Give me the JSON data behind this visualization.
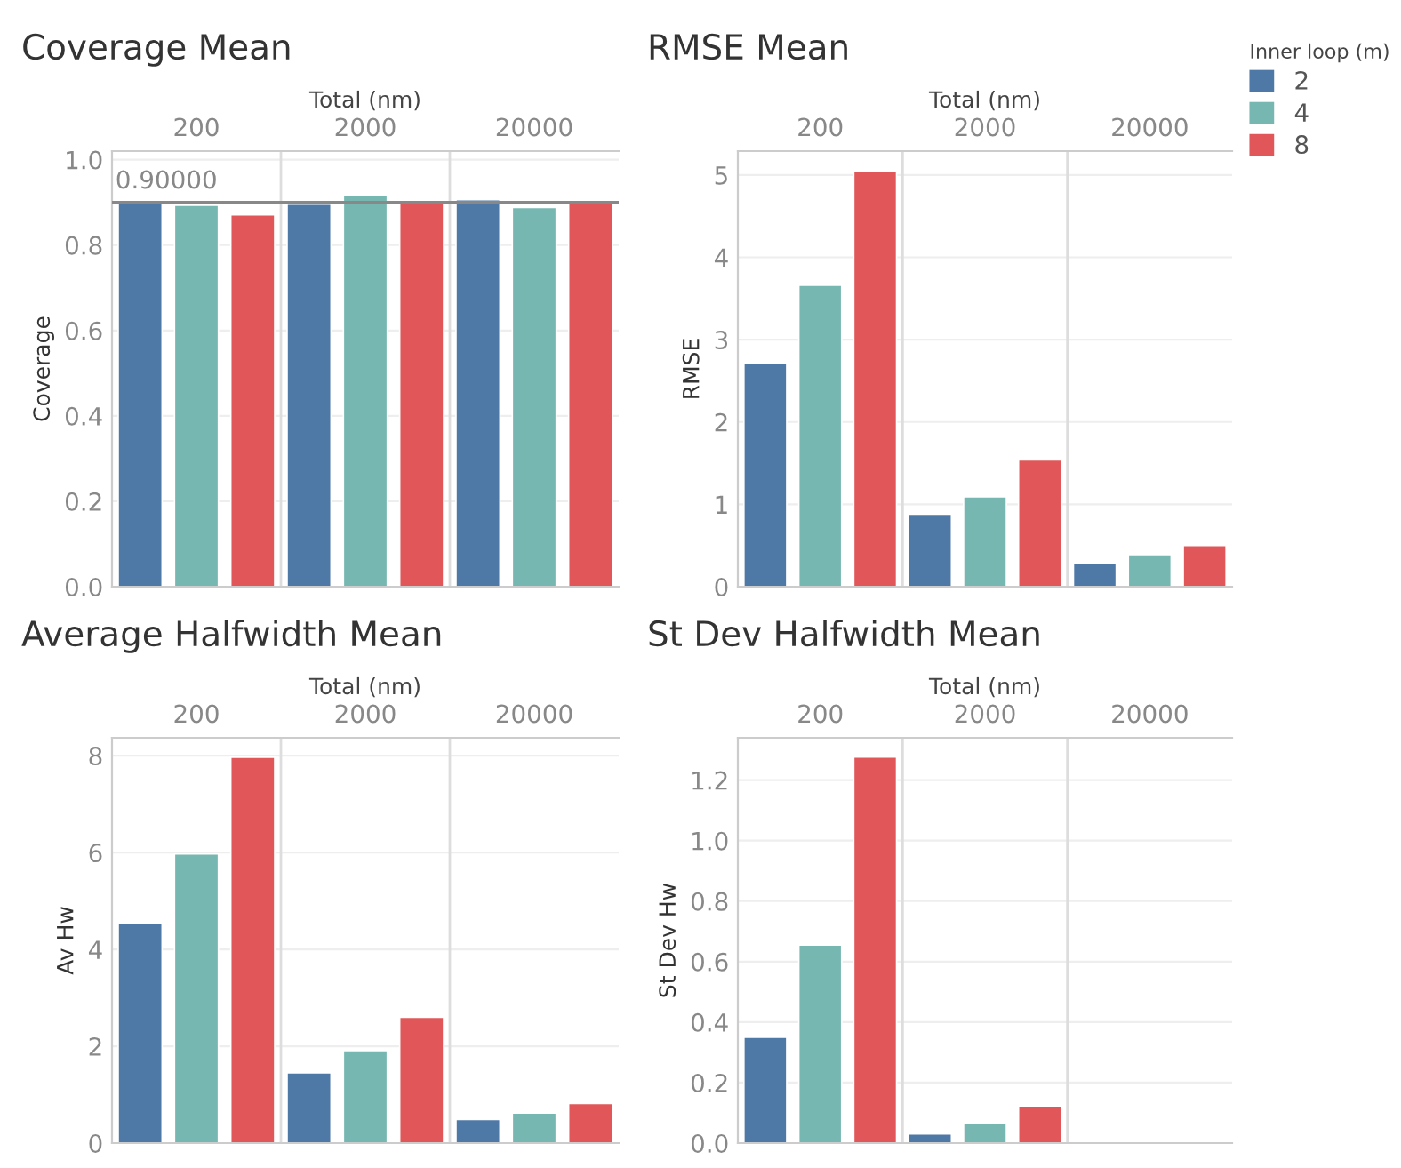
{
  "chart_data": [
    {
      "type": "bar",
      "title": "Coverage Mean",
      "xlabel": "Total (nm)",
      "ylabel": "Coverage",
      "categories": [
        "200",
        "2000",
        "20000"
      ],
      "series": [
        {
          "color": "#4e79a7",
          "values": [
            0.903,
            0.896,
            0.906
          ]
        },
        {
          "color": "#76b7b2",
          "values": [
            0.893,
            0.917,
            0.888
          ]
        },
        {
          "color": "#e15759",
          "values": [
            0.871,
            0.903,
            0.903
          ]
        }
      ],
      "ylim": [
        0,
        1.02
      ],
      "yticks": [
        {
          "value": 0,
          "label": "0.0"
        },
        {
          "value": 0.2,
          "label": "0.2"
        },
        {
          "value": 0.4,
          "label": "0.4"
        },
        {
          "value": 0.6,
          "label": "0.6"
        },
        {
          "value": 0.8,
          "label": "0.8"
        },
        {
          "value": 1,
          "label": "1.0"
        }
      ],
      "ref_lines": [
        {
          "axis": "y",
          "value": 0.9,
          "label": "0.90000",
          "color": "#888888"
        }
      ],
      "grid": "y",
      "legend": false
    },
    {
      "type": "bar",
      "title": "RMSE Mean",
      "xlabel": "Total (nm)",
      "ylabel": "RMSE",
      "categories": [
        "200",
        "2000",
        "20000"
      ],
      "legend_title": "Inner loop (m)",
      "series": [
        {
          "name": "2",
          "color": "#4e79a7",
          "values": [
            2.71,
            0.88,
            0.29
          ]
        },
        {
          "name": "4",
          "color": "#76b7b2",
          "values": [
            3.66,
            1.09,
            0.39
          ]
        },
        {
          "name": "8",
          "color": "#e15759",
          "values": [
            5.04,
            1.54,
            0.5
          ]
        }
      ],
      "ylim": [
        0,
        5.29
      ],
      "yticks": [
        0,
        1,
        2,
        3,
        4,
        5
      ],
      "grid": "y",
      "legend": "right"
    },
    {
      "type": "bar",
      "title": "Average Halfwidth Mean",
      "xlabel": "Total (nm)",
      "ylabel": "Av Hw",
      "categories": [
        "200",
        "2000",
        "20000"
      ],
      "series": [
        {
          "color": "#4e79a7",
          "values": [
            4.54,
            1.45,
            0.49
          ]
        },
        {
          "color": "#76b7b2",
          "values": [
            5.97,
            1.91,
            0.62
          ]
        },
        {
          "color": "#e15759",
          "values": [
            7.97,
            2.6,
            0.82
          ]
        }
      ],
      "ylim": [
        0,
        8.37
      ],
      "yticks": [
        0,
        2,
        4,
        6,
        8
      ],
      "grid": "y",
      "legend": false
    },
    {
      "type": "bar",
      "title": "St Dev Halfwidth Mean",
      "xlabel": "Total (nm)",
      "ylabel": "St Dev Hw",
      "categories": [
        "200",
        "2000",
        "20000"
      ],
      "series": [
        {
          "color": "#4e79a7",
          "values": [
            0.35,
            0.03,
            null
          ]
        },
        {
          "color": "#76b7b2",
          "values": [
            0.655,
            0.065,
            null
          ]
        },
        {
          "color": "#e15759",
          "values": [
            1.276,
            0.123,
            null
          ]
        }
      ],
      "ylim": [
        0,
        1.34
      ],
      "yticks": [
        {
          "value": 0,
          "label": "0.0"
        },
        {
          "value": 0.2,
          "label": "0.2"
        },
        {
          "value": 0.4,
          "label": "0.4"
        },
        {
          "value": 0.6,
          "label": "0.6"
        },
        {
          "value": 0.8,
          "label": "0.8"
        },
        {
          "value": 1,
          "label": "1.0"
        },
        {
          "value": 1.2,
          "label": "1.2"
        }
      ],
      "grid": "y",
      "legend": false
    }
  ]
}
